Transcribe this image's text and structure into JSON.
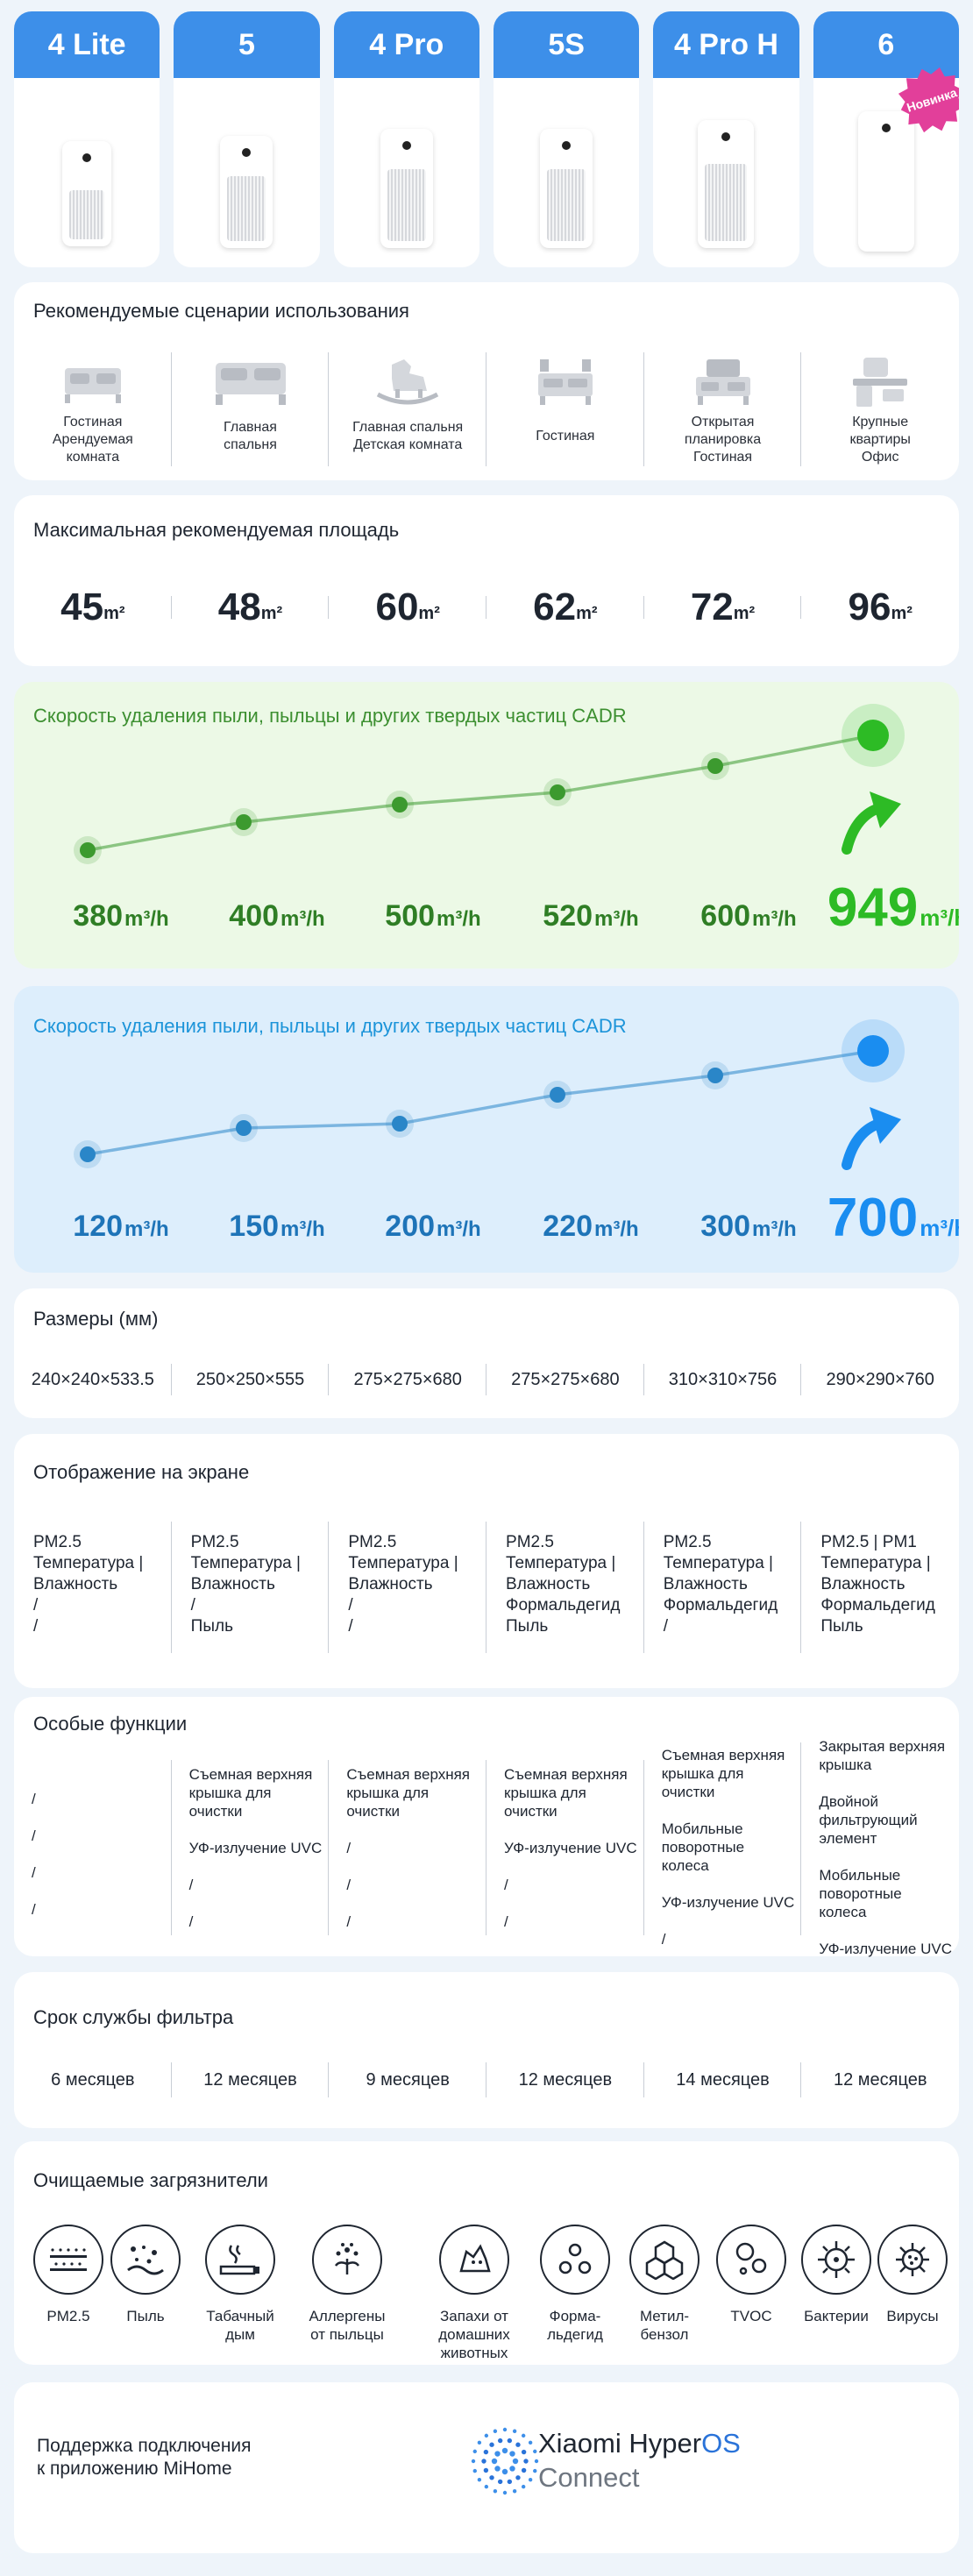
{
  "models": [
    {
      "name": "4 Lite"
    },
    {
      "name": "5"
    },
    {
      "name": "4 Pro"
    },
    {
      "name": "5S"
    },
    {
      "name": "4 Pro H"
    },
    {
      "name": "6"
    }
  ],
  "new_badge": "Новинка",
  "scenarios": {
    "title": "Рекомендуемые сценарии использования",
    "items": [
      {
        "label": "Гостиная\nАрендуемая\nкомната",
        "icon": "bed-icon"
      },
      {
        "label": "Главная\nспальня",
        "icon": "double-bed-icon"
      },
      {
        "label": "Главная спальня\nДетская комната",
        "icon": "rocking-horse-icon"
      },
      {
        "label": "Гостиная",
        "icon": "tv-console-icon"
      },
      {
        "label": "Открытая\nпланировка\nГостиная",
        "icon": "sofa-icon"
      },
      {
        "label": "Крупные\nквартиры\nОфис",
        "icon": "office-desk-icon"
      }
    ]
  },
  "area": {
    "title": "Максимальная рекомендуемая площадь",
    "unit": "m²",
    "values": [
      "45",
      "48",
      "60",
      "62",
      "72",
      "96"
    ]
  },
  "cadr_particles": {
    "title": "Скорость удаления пыли, пыльцы и других твердых частиц CADR",
    "unit": "m³/h",
    "labels": [
      "380",
      "400",
      "500",
      "520",
      "600",
      "949"
    ],
    "colors": {
      "bg": "#ecf9e6",
      "dot": "#3c9a2f",
      "text": "#2f7e25",
      "highlight": "#2dbb25"
    }
  },
  "cadr_blue": {
    "title": "Скорость удаления пыли, пыльцы и других твердых частиц CADR",
    "unit": "m³/h",
    "labels": [
      "120",
      "150",
      "200",
      "220",
      "300",
      "700"
    ],
    "colors": {
      "bg": "#ddeefc",
      "dot": "#2a86c8",
      "text": "#1e74b8",
      "highlight": "#1a8df0"
    }
  },
  "dimensions": {
    "title": "Размеры (мм)",
    "values": [
      "240×240×533.5",
      "250×250×555",
      "275×275×680",
      "275×275×680",
      "310×310×756",
      "290×290×760"
    ]
  },
  "display": {
    "title": "Отображение на экране",
    "values": [
      "PM2.5\nТемпература |\nВлажность\n/\n/",
      "PM2.5\nТемпература |\nВлажность\n/\nПыль",
      "PM2.5\nТемпература |\nВлажность\n/\n/",
      "PM2.5\nТемпература |\nВлажность\nФормальдегид\nПыль",
      "PM2.5\nТемпература |\nВлажность\nФормальдегид\n/",
      "PM2.5 | PM1\nТемпература |\nВлажность\nФормальдегид\nПыль"
    ]
  },
  "features": {
    "title": "Особые функции",
    "values": [
      "/\n\n/\n\n/\n\n/",
      "Съемная верхняя\nкрышка для\nочистки\n\nУФ-излучение UVC\n\n/\n\n/",
      "Съемная верхняя\nкрышка для\nочистки\n\n/\n\n/\n\n/",
      "Съемная верхняя\nкрышка для\nочистки\n\nУФ-излучение UVC\n\n/\n\n/",
      "Съемная верхняя\nкрышка для\nочистки\n\nМобильные\nповоротные\nколеса\n\nУФ-излучение UVC\n\n/",
      "Закрытая верхняя\nкрышка\n\nДвойной\nфильтрующий\nэлемент\n\nМобильные\nповоротные\nколеса\n\nУФ-излучение UVC"
    ]
  },
  "filter_life": {
    "title": "Срок службы фильтра",
    "values": [
      "6 месяцев",
      "12 месяцев",
      "9 месяцев",
      "12 месяцев",
      "14 месяцев",
      "12 месяцев"
    ]
  },
  "pollutants": {
    "title": "Очищаемые загрязнители",
    "items": [
      {
        "label": "PM2.5",
        "icon": "pm25-icon"
      },
      {
        "label": "Пыль",
        "icon": "dust-icon"
      },
      {
        "label": "Табачный\nдым",
        "icon": "cigarette-icon"
      },
      {
        "label": "Аллергены\nот пыльцы",
        "icon": "pollen-icon"
      },
      {
        "label": "Запахи от\nдомашних\nживотных",
        "icon": "pet-icon"
      },
      {
        "label": "Форма-\nльдегид",
        "icon": "formaldehyde-icon"
      },
      {
        "label": "Метил-\nбензол",
        "icon": "methylbenzene-icon"
      },
      {
        "label": "TVOC",
        "icon": "tvoc-icon"
      },
      {
        "label": "Бактерии",
        "icon": "bacteria-icon"
      },
      {
        "label": "Вирусы",
        "icon": "virus-icon"
      }
    ]
  },
  "app": {
    "text": "Поддержка подключения\nк приложению MiHome",
    "brand_prefix": "Xiaomi Hyper",
    "brand_os": "OS",
    "connect": "Connect"
  }
}
